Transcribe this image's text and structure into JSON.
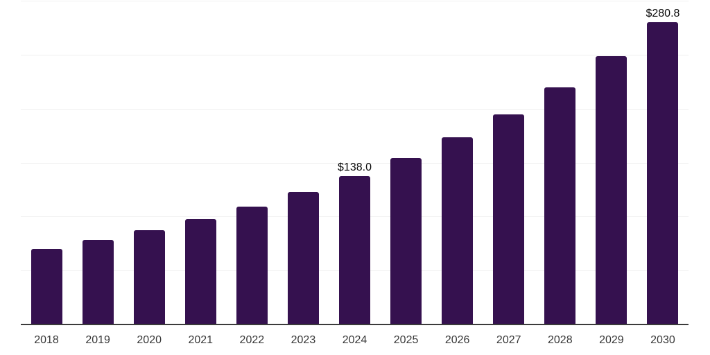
{
  "chart_data": {
    "type": "bar",
    "title": "",
    "xlabel": "",
    "ylabel": "",
    "categories": [
      "2018",
      "2019",
      "2020",
      "2021",
      "2022",
      "2023",
      "2024",
      "2025",
      "2026",
      "2027",
      "2028",
      "2029",
      "2030"
    ],
    "values": [
      70.7,
      79.0,
      88.2,
      98.5,
      109.7,
      123.3,
      138.0,
      154.6,
      173.9,
      195.5,
      220.5,
      249.4,
      280.8
    ],
    "data_labels": [
      "",
      "",
      "",
      "",
      "",
      "",
      "$138.0",
      "",
      "",
      "",
      "",
      "",
      "$280.8"
    ],
    "ylim": [
      0,
      300
    ],
    "gridline_values": [
      50,
      100,
      150,
      200,
      250,
      300
    ],
    "grid": "horizontal",
    "legend": "none",
    "y_tick_labels_visible": false,
    "colors": {
      "bar": "#35114F",
      "grid": "#f0f0f0",
      "axis": "#3b3b3b",
      "tick_label": "#383838",
      "value_label": "#0a0a0a",
      "background": "#ffffff"
    }
  }
}
